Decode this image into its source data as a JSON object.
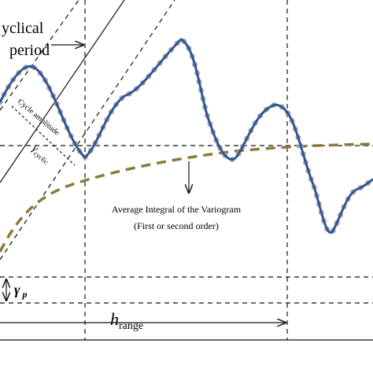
{
  "labels": {
    "cyclical": "yclical",
    "period": "period",
    "cycle_amplitude": "Cycle amplitude",
    "gamma_cyclic": "γ",
    "gamma_cyclic_sub": "cyclic",
    "average_integral": "Average Integral of the Variogram",
    "order": "(First or second order)",
    "gamma_p": "γ",
    "gamma_p_sub": "p",
    "h": "h",
    "h_sub": "range"
  }
}
